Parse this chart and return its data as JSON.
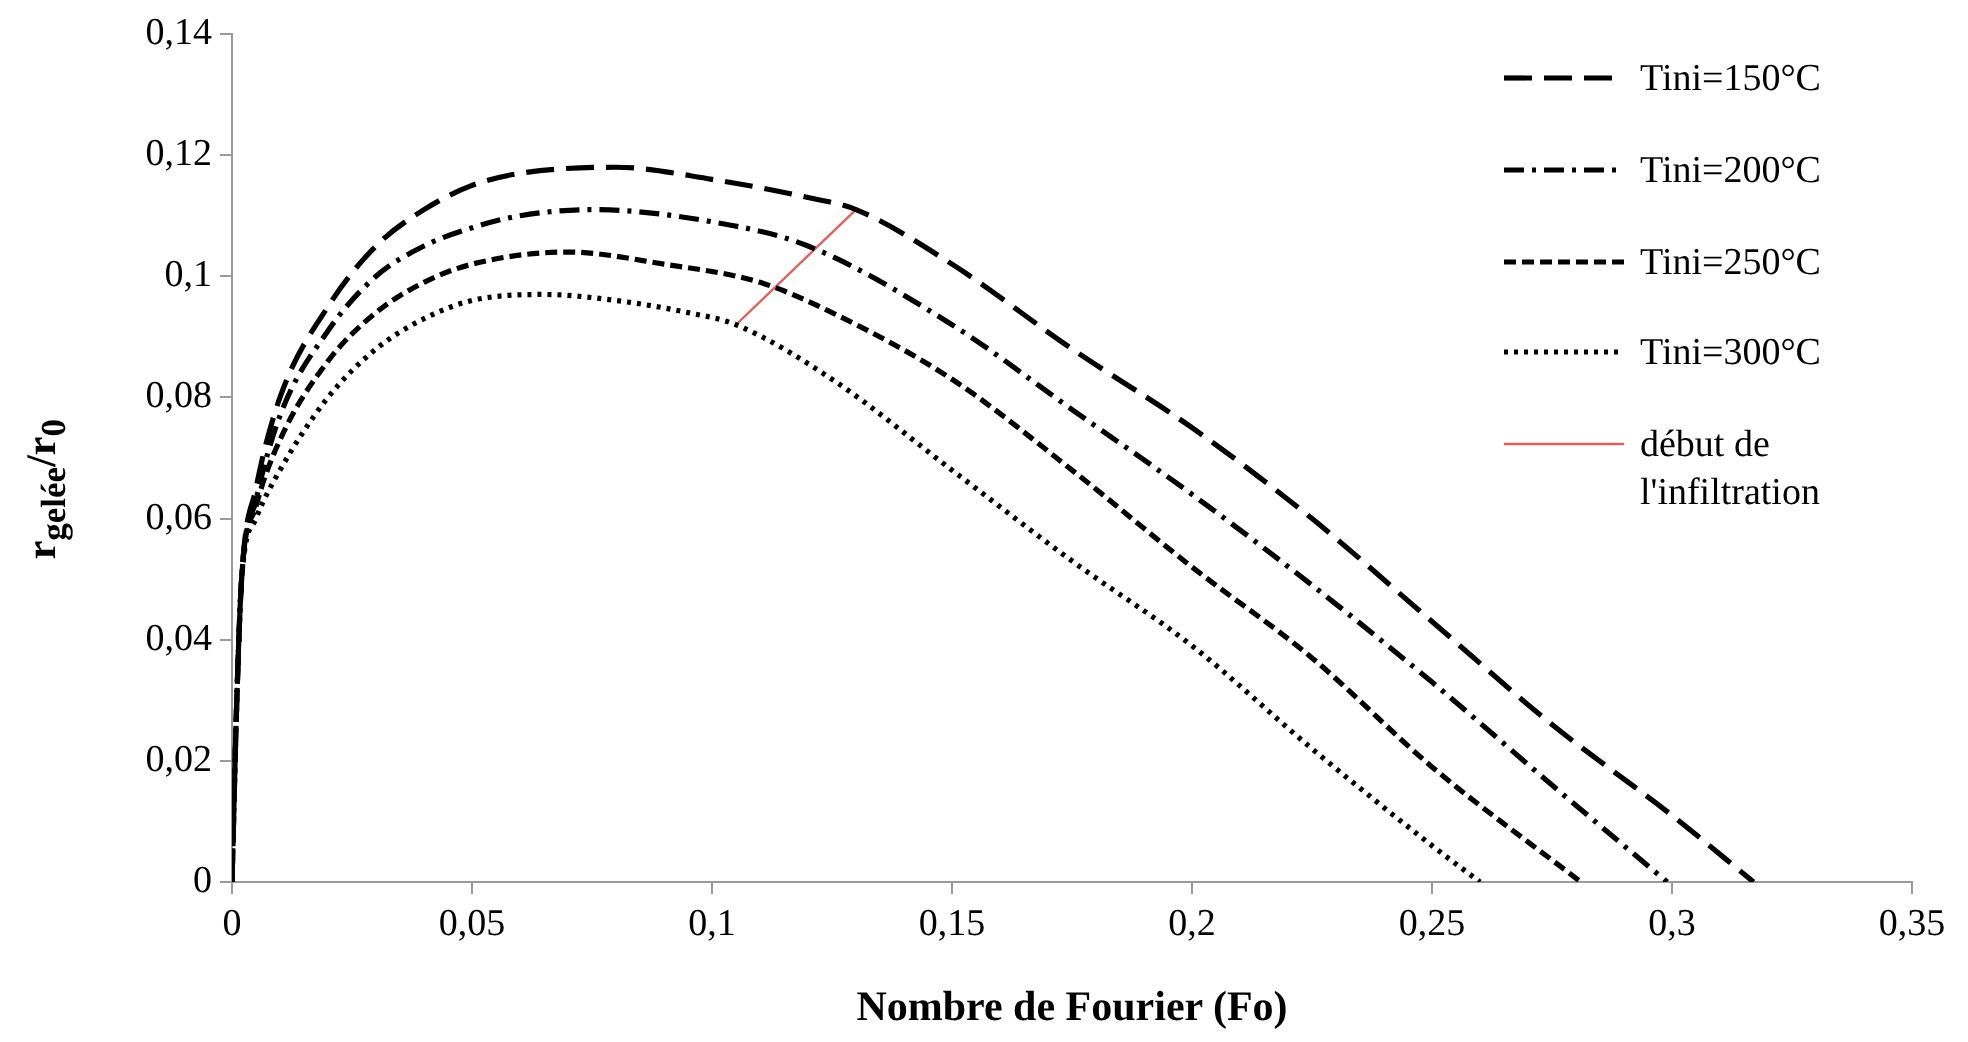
{
  "chart_data": {
    "type": "line",
    "xlabel": "Nombre de Fourier (Fo)",
    "ylabel": "r$_{gelée}$/r$_{0}$",
    "xlim": [
      0,
      0.35
    ],
    "xticks": [
      0,
      {
        "value": 0.05,
        "label": "0,05"
      },
      {
        "value": 0.1,
        "label": "0,1"
      },
      {
        "value": 0.15,
        "label": "0,15"
      },
      {
        "value": 0.2,
        "label": "0,2"
      },
      {
        "value": 0.25,
        "label": "0,25"
      },
      {
        "value": 0.3,
        "label": "0,3"
      },
      {
        "value": 0.35,
        "label": "0,35"
      }
    ],
    "ylim": [
      0,
      0.14
    ],
    "yticks": [
      0,
      {
        "value": 0.02,
        "label": "0,02"
      },
      {
        "value": 0.04,
        "label": "0,04"
      },
      {
        "value": 0.06,
        "label": "0,06"
      },
      {
        "value": 0.08,
        "label": "0,08"
      },
      {
        "value": 0.1,
        "label": "0,1"
      },
      {
        "value": 0.12,
        "label": "0,12"
      },
      {
        "value": 0.14,
        "label": "0,14"
      }
    ],
    "legend": "right",
    "marker": "none",
    "series": [
      {
        "name": "Tini=150°C",
        "color": "#000000",
        "line_style": "long_dashed",
        "x": [
          0,
          0.001,
          0.002,
          0.005,
          0.01,
          0.02,
          0.03,
          0.04,
          0.05,
          0.06,
          0.08,
          0.1,
          0.12,
          0.13,
          0.15,
          0.175,
          0.2,
          0.225,
          0.25,
          0.275,
          0.3,
          0.317
        ],
        "values": [
          0,
          0.03,
          0.05,
          0.065,
          0.08,
          0.095,
          0.105,
          0.111,
          0.115,
          0.117,
          0.118,
          0.116,
          0.113,
          0.111,
          0.102,
          0.088,
          0.075,
          0.06,
          0.043,
          0.026,
          0.011,
          0
        ]
      },
      {
        "name": "Tini=200°C",
        "color": "#000000",
        "line_style": "dashdot",
        "x": [
          0,
          0.001,
          0.002,
          0.005,
          0.01,
          0.02,
          0.03,
          0.04,
          0.05,
          0.06,
          0.075,
          0.1,
          0.12,
          0.15,
          0.175,
          0.2,
          0.225,
          0.25,
          0.275,
          0.299
        ],
        "values": [
          0,
          0.03,
          0.05,
          0.063,
          0.077,
          0.091,
          0.1,
          0.105,
          0.108,
          0.11,
          0.111,
          0.109,
          0.105,
          0.092,
          0.078,
          0.064,
          0.049,
          0.033,
          0.016,
          0
        ]
      },
      {
        "name": "Tini=250°C",
        "color": "#000000",
        "line_style": "dashed",
        "x": [
          0,
          0.001,
          0.002,
          0.005,
          0.01,
          0.02,
          0.03,
          0.04,
          0.05,
          0.07,
          0.09,
          0.11,
          0.125,
          0.15,
          0.175,
          0.2,
          0.225,
          0.25,
          0.281
        ],
        "values": [
          0,
          0.03,
          0.05,
          0.062,
          0.073,
          0.086,
          0.094,
          0.099,
          0.102,
          0.104,
          0.102,
          0.099,
          0.094,
          0.083,
          0.068,
          0.052,
          0.037,
          0.019,
          0
        ]
      },
      {
        "name": "Tini=300°C",
        "color": "#000000",
        "line_style": "dotted",
        "x": [
          0,
          0.001,
          0.002,
          0.005,
          0.01,
          0.02,
          0.03,
          0.04,
          0.05,
          0.065,
          0.08,
          0.095,
          0.105,
          0.125,
          0.15,
          0.175,
          0.2,
          0.225,
          0.25,
          0.26
        ],
        "values": [
          0,
          0.03,
          0.05,
          0.06,
          0.068,
          0.08,
          0.088,
          0.093,
          0.096,
          0.097,
          0.096,
          0.094,
          0.092,
          0.083,
          0.068,
          0.053,
          0.039,
          0.022,
          0.006,
          0
        ]
      },
      {
        "name": "début de l'infiltration",
        "color": "#e06060",
        "line_style": "solid",
        "x": [
          0.105,
          0.13
        ],
        "values": [
          0.092,
          0.111
        ]
      }
    ]
  }
}
